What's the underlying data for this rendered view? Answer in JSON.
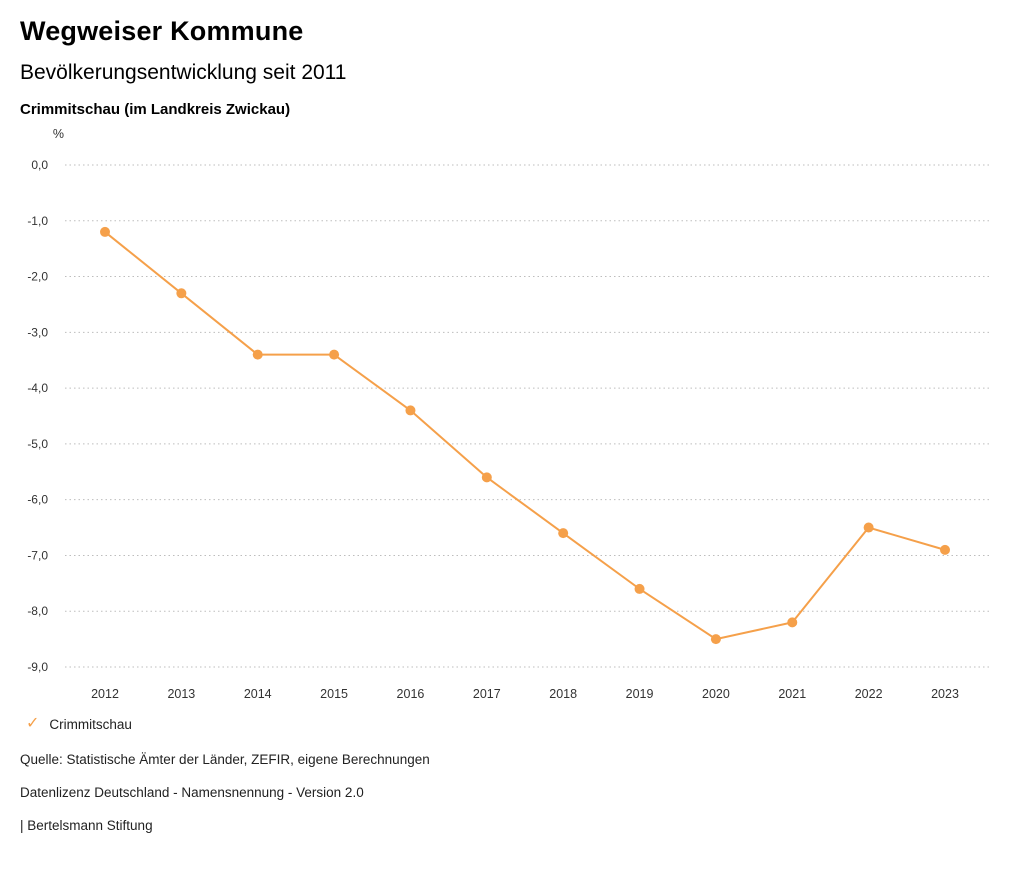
{
  "header": {
    "title": "Wegweiser Kommune",
    "subtitle": "Bevölkerungsentwicklung seit 2011",
    "location": "Crimmitschau (im Landkreis Zwickau)"
  },
  "chart_data": {
    "type": "line",
    "title": "Bevölkerungsentwicklung seit 2011",
    "subtitle": "Crimmitschau (im Landkreis Zwickau)",
    "unit_label": "%",
    "x": [
      2012,
      2013,
      2014,
      2015,
      2016,
      2017,
      2018,
      2019,
      2020,
      2021,
      2022,
      2023
    ],
    "series": [
      {
        "name": "Crimmitschau",
        "color": "#f5a04a",
        "values": [
          -1.2,
          -2.3,
          -3.4,
          -3.4,
          -4.4,
          -5.6,
          -6.6,
          -7.6,
          -8.5,
          -8.2,
          -6.5,
          -6.9
        ]
      }
    ],
    "ylim": [
      -9.0,
      0.0
    ],
    "ytick_step": 1.0,
    "ytick_labels": [
      "0,0",
      "-1,0",
      "-2,0",
      "-3,0",
      "-4,0",
      "-5,0",
      "-6,0",
      "-7,0",
      "-8,0",
      "-9,0"
    ],
    "grid": "dotted-horizontal",
    "grid_color": "#bdbdbd",
    "axis_text_color": "#333333",
    "legend_position": "bottom-left"
  },
  "legend": {
    "items": [
      {
        "label": "Crimmitschau",
        "color": "#f5a04a",
        "check_icon": "✓"
      }
    ]
  },
  "footer": {
    "source": "Quelle: Statistische Ämter der Länder, ZEFIR, eigene Berechnungen",
    "license": "Datenlizenz Deutschland - Namensnennung - Version 2.0",
    "attribution": "| Bertelsmann Stiftung"
  }
}
